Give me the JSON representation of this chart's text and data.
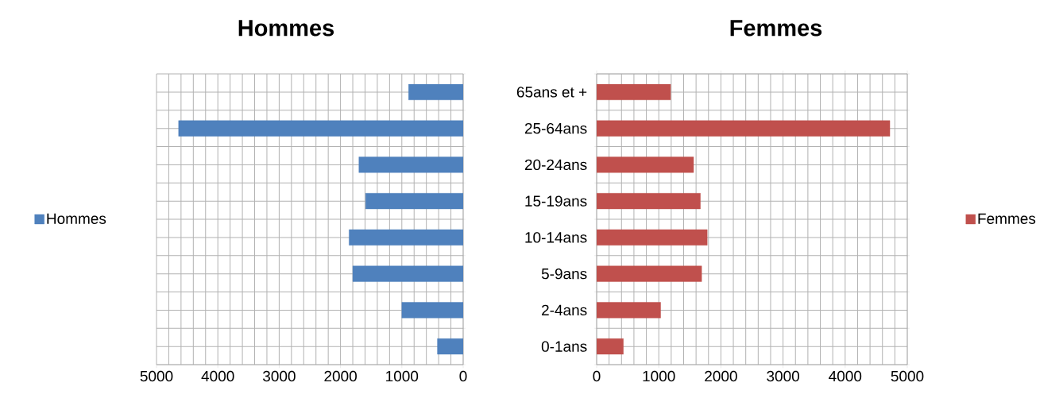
{
  "chart_data": [
    {
      "type": "bar",
      "orientation": "horizontal",
      "title": "Hommes",
      "categories": [
        null,
        null,
        null,
        null,
        null,
        null,
        null,
        null
      ],
      "series": [
        {
          "name": "Hommes",
          "color": "#4f81bd",
          "values": [
            890,
            4640,
            1700,
            1590,
            1860,
            1800,
            1000,
            420
          ]
        }
      ],
      "xlim": [
        5000,
        0
      ],
      "xticks": [
        5000,
        4000,
        3000,
        2000,
        1000,
        0
      ],
      "grid": true,
      "legend": "left"
    },
    {
      "type": "bar",
      "orientation": "horizontal",
      "title": "Femmes",
      "categories": [
        "65ans et +",
        "25-64ans",
        "20-24ans",
        "15-19ans",
        "10-14ans",
        "5-9ans",
        "2-4ans",
        "0-1ans"
      ],
      "series": [
        {
          "name": "Femmes",
          "color": "#c0504d",
          "values": [
            1190,
            4720,
            1560,
            1670,
            1780,
            1690,
            1030,
            430
          ]
        }
      ],
      "xlim": [
        0,
        5000
      ],
      "xticks": [
        0,
        1000,
        2000,
        3000,
        4000,
        5000
      ],
      "grid": true,
      "legend": "right"
    }
  ]
}
